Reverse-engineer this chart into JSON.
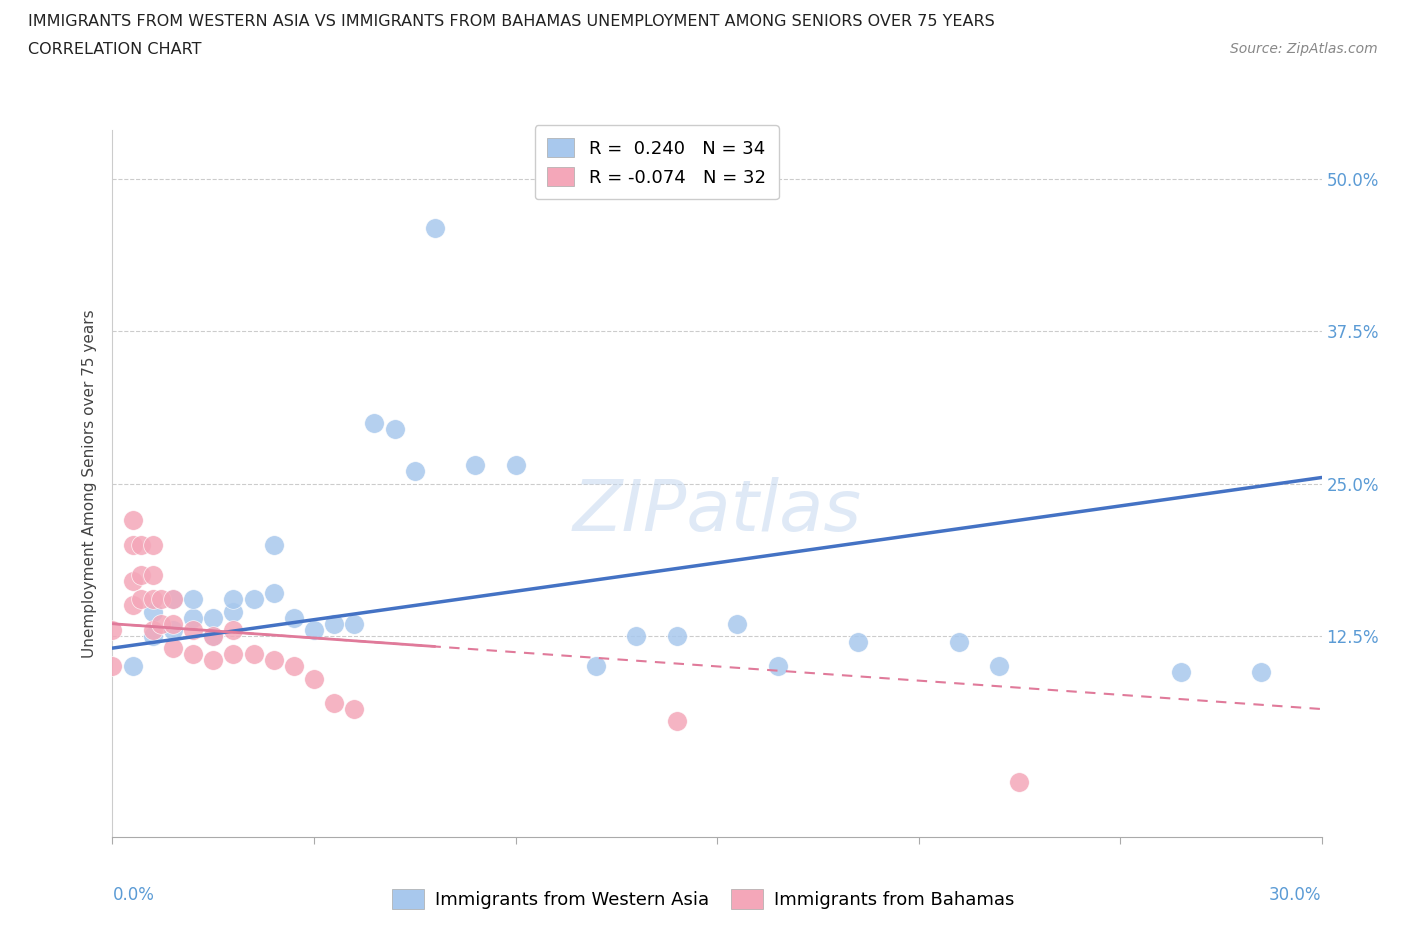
{
  "title_line1": "IMMIGRANTS FROM WESTERN ASIA VS IMMIGRANTS FROM BAHAMAS UNEMPLOYMENT AMONG SENIORS OVER 75 YEARS",
  "title_line2": "CORRELATION CHART",
  "source": "Source: ZipAtlas.com",
  "ylabel": "Unemployment Among Seniors over 75 years",
  "xlim": [
    0.0,
    0.3
  ],
  "ylim": [
    -0.04,
    0.54
  ],
  "western_asia_R": 0.24,
  "western_asia_N": 34,
  "bahamas_R": -0.074,
  "bahamas_N": 32,
  "blue_color": "#a8c8ed",
  "pink_color": "#f4a7b9",
  "blue_line_color": "#4472c4",
  "pink_line_color": "#e07a9a",
  "watermark": "ZIPatlas",
  "western_asia_x": [
    0.005,
    0.01,
    0.01,
    0.015,
    0.015,
    0.02,
    0.02,
    0.025,
    0.025,
    0.03,
    0.03,
    0.035,
    0.04,
    0.04,
    0.045,
    0.05,
    0.055,
    0.06,
    0.065,
    0.07,
    0.075,
    0.09,
    0.1,
    0.12,
    0.13,
    0.14,
    0.155,
    0.165,
    0.185,
    0.21,
    0.22,
    0.265,
    0.285,
    0.08
  ],
  "western_asia_y": [
    0.1,
    0.125,
    0.145,
    0.13,
    0.155,
    0.14,
    0.155,
    0.125,
    0.14,
    0.145,
    0.155,
    0.155,
    0.16,
    0.2,
    0.14,
    0.13,
    0.135,
    0.135,
    0.3,
    0.295,
    0.26,
    0.265,
    0.265,
    0.1,
    0.125,
    0.125,
    0.135,
    0.1,
    0.12,
    0.12,
    0.1,
    0.095,
    0.095,
    0.46
  ],
  "bahamas_x": [
    0.0,
    0.0,
    0.005,
    0.005,
    0.005,
    0.005,
    0.007,
    0.007,
    0.007,
    0.01,
    0.01,
    0.01,
    0.01,
    0.012,
    0.012,
    0.015,
    0.015,
    0.015,
    0.02,
    0.02,
    0.025,
    0.025,
    0.03,
    0.03,
    0.035,
    0.04,
    0.045,
    0.05,
    0.055,
    0.06,
    0.14,
    0.225
  ],
  "bahamas_y": [
    0.13,
    0.1,
    0.22,
    0.2,
    0.17,
    0.15,
    0.2,
    0.175,
    0.155,
    0.2,
    0.175,
    0.155,
    0.13,
    0.155,
    0.135,
    0.155,
    0.135,
    0.115,
    0.13,
    0.11,
    0.125,
    0.105,
    0.13,
    0.11,
    0.11,
    0.105,
    0.1,
    0.09,
    0.07,
    0.065,
    0.055,
    0.005
  ],
  "wa_line_x0": 0.0,
  "wa_line_y0": 0.115,
  "wa_line_x1": 0.3,
  "wa_line_y1": 0.255,
  "bah_line_x0": 0.0,
  "bah_line_y0": 0.135,
  "bah_line_x1": 0.3,
  "bah_line_y1": 0.065
}
